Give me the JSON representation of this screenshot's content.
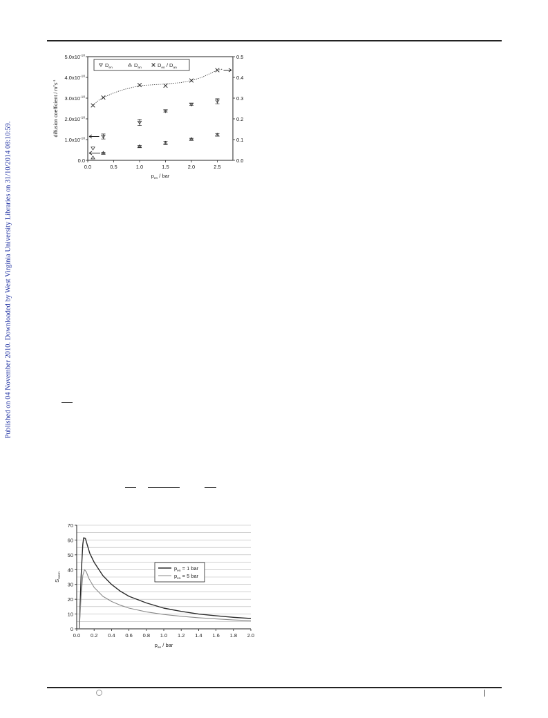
{
  "sidebar": {
    "text": "Published on 04 November 2010. Downloaded by West Virginia University Libraries on 31/10/2014 08:10:59."
  },
  "colors": {
    "sidebar_text": "#1d2fa0",
    "dark_line": "#2a2a2a",
    "light_line": "#8a8a8a"
  },
  "chart_data": [
    {
      "type": "scatter",
      "title": "",
      "xlabel": "p_en / bar",
      "ylabel": "diffusion coefficient / m^2 s^-1",
      "y2label": "D(en)/D(an)",
      "xlim": [
        0,
        2.8
      ],
      "ylim": [
        0,
        5e-10
      ],
      "y2lim": [
        0,
        0.5
      ],
      "xticks": [
        "0.0",
        "0.5",
        "1.0",
        "1.5",
        "2.0",
        "2.5"
      ],
      "yticks": [
        "0.0",
        "1.0x10",
        "2.0x10",
        "3.0x10",
        "4.0x10",
        "5.0x10"
      ],
      "ytick_exp": "-10",
      "y2ticks": [
        "0.0",
        "0.1",
        "0.2",
        "0.3",
        "0.4",
        "0.5"
      ],
      "grid": false,
      "legend": {
        "placement": "top-left",
        "entries": [
          "D_en",
          "D_an",
          "D_en / D_an"
        ]
      },
      "series": [
        {
          "name": "D_en",
          "marker": "triangle-down",
          "axis": "left",
          "x": [
            0.1,
            0.3,
            1.0,
            1.5,
            2.0,
            2.5
          ],
          "y": [
            5.8e-11,
            1.15e-10,
            1.83e-10,
            2.38e-10,
            2.7e-10,
            2.85e-10
          ],
          "err": [
            0,
            1.2e-11,
            1.5e-11,
            5e-12,
            5e-12,
            1.2e-11
          ]
        },
        {
          "name": "D_an",
          "marker": "triangle-up",
          "axis": "left",
          "x": [
            0.1,
            0.3,
            1.0,
            1.5,
            2.0,
            2.5
          ],
          "y": [
            1.3e-11,
            3.5e-11,
            6.7e-11,
            8.4e-11,
            1.02e-10,
            1.23e-10
          ],
          "err": [
            0,
            3e-12,
            4e-12,
            8e-12,
            4e-12,
            6e-12
          ]
        },
        {
          "name": "D_en / D_an",
          "marker": "x",
          "axis": "right",
          "x": [
            0.1,
            0.3,
            1.0,
            1.5,
            2.0,
            2.5
          ],
          "y": [
            0.265,
            0.303,
            0.363,
            0.36,
            0.385,
            0.435
          ]
        }
      ],
      "fit_curve": {
        "style": "dotted",
        "axis": "right",
        "x": [
          0.1,
          0.2,
          0.3,
          0.5,
          0.7,
          1.0,
          1.3,
          1.5,
          1.8,
          2.0,
          2.2,
          2.5,
          2.6
        ],
        "y": [
          0.265,
          0.288,
          0.303,
          0.325,
          0.342,
          0.36,
          0.365,
          0.368,
          0.375,
          0.385,
          0.4,
          0.435,
          0.44
        ]
      },
      "axis_arrows": [
        {
          "side": "left",
          "series": "D_en",
          "y": 1.15e-10
        },
        {
          "side": "left",
          "series": "D_an",
          "y": 3.5e-11
        },
        {
          "side": "right",
          "series": "D_en / D_an",
          "y": 0.435
        }
      ]
    },
    {
      "type": "line",
      "title": "",
      "xlabel": "p_an / bar",
      "ylabel": "S_mem",
      "xlim": [
        0,
        2.0
      ],
      "ylim": [
        0,
        70
      ],
      "xticks": [
        "0.0",
        "0.2",
        "0.4",
        "0.6",
        "0.8",
        "1.0",
        "1.2",
        "1.4",
        "1.6",
        "1.8",
        "2.0"
      ],
      "yticks": [
        "0",
        "10",
        "20",
        "30",
        "40",
        "50",
        "60",
        "70"
      ],
      "grid": "horizontal",
      "legend": {
        "placement": "center-right",
        "entries": [
          "p_en = 1 bar",
          "p_en = 5 bar"
        ]
      },
      "series": [
        {
          "name": "p_en = 1 bar",
          "color": "#2a2a2a",
          "x": [
            0.03,
            0.05,
            0.07,
            0.08,
            0.1,
            0.12,
            0.15,
            0.2,
            0.3,
            0.4,
            0.5,
            0.6,
            0.8,
            1.0,
            1.2,
            1.4,
            1.6,
            1.8,
            2.0
          ],
          "y": [
            0,
            35,
            57,
            61.5,
            61,
            57,
            51,
            45,
            36,
            30,
            25.5,
            22,
            17.5,
            14,
            11.8,
            10,
            8.8,
            7.8,
            7
          ]
        },
        {
          "name": "p_en = 5 bar",
          "color": "#8a8a8a",
          "x": [
            0.03,
            0.05,
            0.07,
            0.09,
            0.11,
            0.14,
            0.2,
            0.3,
            0.4,
            0.5,
            0.6,
            0.8,
            1.0,
            1.2,
            1.4,
            1.6,
            1.8,
            2.0
          ],
          "y": [
            0,
            22,
            36,
            40,
            38.5,
            34,
            28,
            22,
            18.5,
            16,
            14,
            11.5,
            9.7,
            8.5,
            7.5,
            6.7,
            6,
            5.5
          ]
        }
      ]
    }
  ]
}
